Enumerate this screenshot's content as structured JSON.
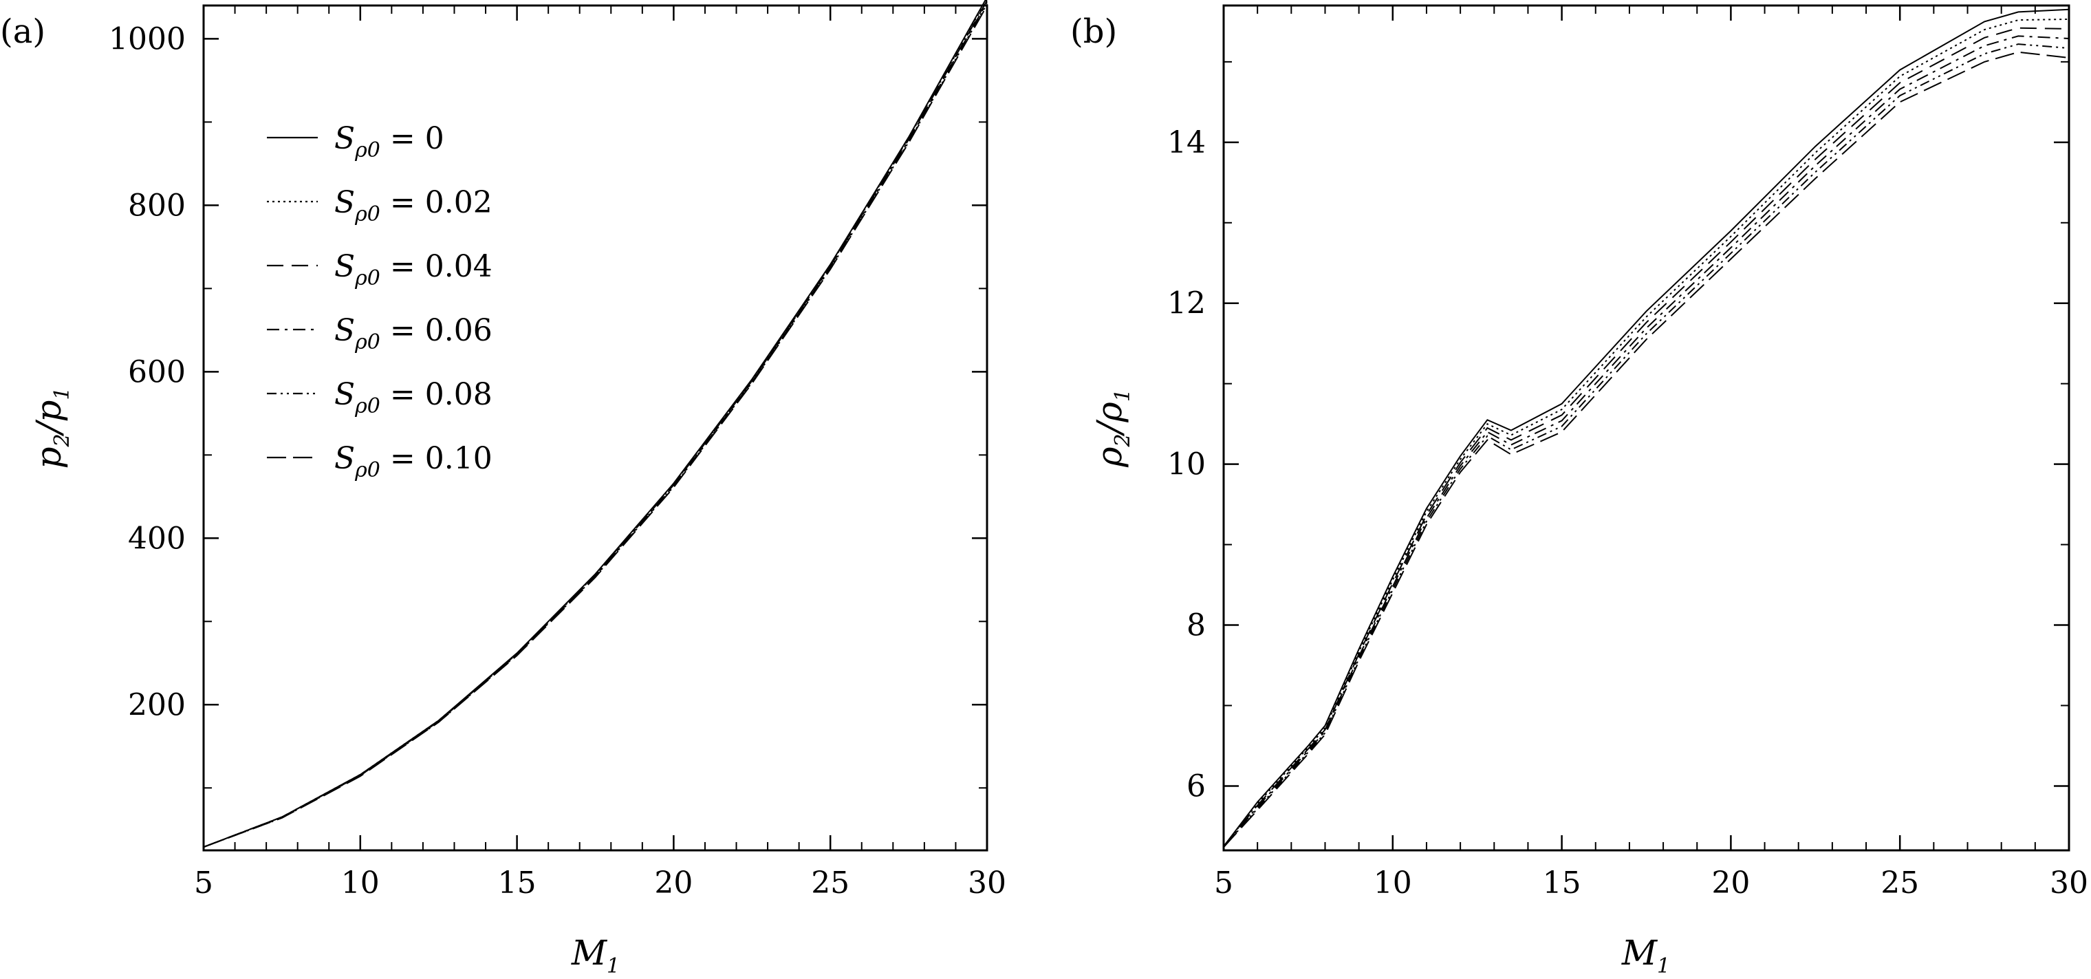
{
  "chart_data": [
    {
      "panel": "(a)",
      "type": "line",
      "xlabel": "M",
      "xlabel_sub": "1",
      "ylabel_parts": [
        "p",
        "2",
        "/p",
        "1"
      ],
      "xlim": [
        5,
        30
      ],
      "ylim": [
        25,
        1040
      ],
      "xticks": [
        5,
        10,
        15,
        20,
        25,
        30
      ],
      "yticks": [
        200,
        400,
        600,
        800,
        1000
      ],
      "legend_placement": "upper-left",
      "series": [
        {
          "name_main": "S",
          "name_sub": "ρ0",
          "name_value": "= 0",
          "dash": "none",
          "x": [
            5,
            7.5,
            10,
            12.5,
            15,
            17.5,
            20,
            22.5,
            25,
            27.5,
            30
          ],
          "y": [
            29,
            65,
            116,
            181,
            262,
            357,
            466,
            591,
            729,
            882,
            1050
          ]
        },
        {
          "name_main": "S",
          "name_sub": "ρ0",
          "name_value": "= 0.02",
          "dash": "3,5",
          "x": [
            5,
            7.5,
            10,
            12.5,
            15,
            17.5,
            20,
            22.5,
            25,
            27.5,
            30
          ],
          "y": [
            29,
            65,
            116,
            181,
            261,
            356,
            465,
            590,
            728,
            881,
            1048
          ]
        },
        {
          "name_main": "S",
          "name_sub": "ρ0",
          "name_value": "= 0.04",
          "dash": "24,12",
          "x": [
            5,
            7.5,
            10,
            12.5,
            15,
            17.5,
            20,
            22.5,
            25,
            27.5,
            30
          ],
          "y": [
            29,
            65,
            115,
            180,
            261,
            355,
            464,
            589,
            727,
            879,
            1046
          ]
        },
        {
          "name_main": "S",
          "name_sub": "ρ0",
          "name_value": "= 0.06",
          "dash": "18,8,4,8",
          "x": [
            5,
            7.5,
            10,
            12.5,
            15,
            17.5,
            20,
            22.5,
            25,
            27.5,
            30
          ],
          "y": [
            29,
            65,
            115,
            180,
            260,
            355,
            463,
            588,
            726,
            878,
            1044
          ]
        },
        {
          "name_main": "S",
          "name_sub": "ρ0",
          "name_value": "= 0.08",
          "dash": "14,6,3,6,3,6",
          "x": [
            5,
            7.5,
            10,
            12.5,
            15,
            17.5,
            20,
            22.5,
            25,
            27.5,
            30
          ],
          "y": [
            29,
            64,
            115,
            179,
            260,
            354,
            462,
            587,
            724,
            876,
            1042
          ]
        },
        {
          "name_main": "S",
          "name_sub": "ρ0",
          "name_value": "= 0.10",
          "dash": "28,10",
          "x": [
            5,
            7.5,
            10,
            12.5,
            15,
            17.5,
            20,
            22.5,
            25,
            27.5,
            30
          ],
          "y": [
            29,
            64,
            114,
            179,
            259,
            353,
            461,
            586,
            723,
            875,
            1040
          ]
        }
      ]
    },
    {
      "panel": "(b)",
      "type": "line",
      "xlabel": "M",
      "xlabel_sub": "1",
      "ylabel_parts": [
        "ρ",
        "2",
        "/ρ",
        "1"
      ],
      "xlim": [
        5,
        30
      ],
      "ylim": [
        5.2,
        15.7
      ],
      "xticks": [
        5,
        10,
        15,
        20,
        25,
        30
      ],
      "yticks": [
        6,
        8,
        10,
        12,
        14
      ],
      "series": [
        {
          "name_main": "S",
          "name_sub": "ρ0",
          "name_value": "= 0",
          "dash": "none",
          "x": [
            5,
            6,
            7.5,
            8,
            9,
            10,
            11,
            12,
            12.8,
            13.5,
            15,
            17.5,
            20,
            22.5,
            25,
            27.5,
            28.5,
            30
          ],
          "y": [
            5.25,
            5.8,
            6.5,
            6.75,
            7.7,
            8.6,
            9.45,
            10.1,
            10.55,
            10.42,
            10.75,
            11.9,
            12.9,
            13.95,
            14.9,
            15.5,
            15.62,
            15.65
          ]
        },
        {
          "name_main": "S",
          "name_sub": "ρ0",
          "name_value": "= 0.02",
          "dash": "3,5",
          "x": [
            5,
            6,
            7.5,
            8,
            9,
            10,
            11,
            12,
            12.8,
            13.5,
            15,
            17.5,
            20,
            22.5,
            25,
            27.5,
            28.5,
            30
          ],
          "y": [
            5.25,
            5.78,
            6.48,
            6.72,
            7.67,
            8.56,
            9.41,
            10.06,
            10.5,
            10.36,
            10.68,
            11.83,
            12.83,
            13.87,
            14.82,
            15.4,
            15.52,
            15.53
          ]
        },
        {
          "name_main": "S",
          "name_sub": "ρ0",
          "name_value": "= 0.04",
          "dash": "24,12",
          "x": [
            5,
            6,
            7.5,
            8,
            9,
            10,
            11,
            12,
            12.8,
            13.5,
            15,
            17.5,
            20,
            22.5,
            25,
            27.5,
            28.5,
            30
          ],
          "y": [
            5.25,
            5.76,
            6.46,
            6.7,
            7.64,
            8.52,
            9.37,
            10.02,
            10.45,
            10.3,
            10.61,
            11.76,
            12.76,
            13.79,
            14.74,
            15.3,
            15.42,
            15.41
          ]
        },
        {
          "name_main": "S",
          "name_sub": "ρ0",
          "name_value": "= 0.06",
          "dash": "18,8,4,8",
          "x": [
            5,
            6,
            7.5,
            8,
            9,
            10,
            11,
            12,
            12.8,
            13.5,
            15,
            17.5,
            20,
            22.5,
            25,
            27.5,
            28.5,
            30
          ],
          "y": [
            5.24,
            5.74,
            6.44,
            6.68,
            7.61,
            8.48,
            9.33,
            9.98,
            10.4,
            10.24,
            10.54,
            11.69,
            12.69,
            13.71,
            14.66,
            15.2,
            15.32,
            15.29
          ]
        },
        {
          "name_main": "S",
          "name_sub": "ρ0",
          "name_value": "= 0.08",
          "dash": "14,6,3,6,3,6",
          "x": [
            5,
            6,
            7.5,
            8,
            9,
            10,
            11,
            12,
            12.8,
            13.5,
            15,
            17.5,
            20,
            22.5,
            25,
            27.5,
            28.5,
            30
          ],
          "y": [
            5.24,
            5.72,
            6.42,
            6.66,
            7.58,
            8.44,
            9.29,
            9.94,
            10.35,
            10.18,
            10.47,
            11.62,
            12.62,
            13.63,
            14.58,
            15.1,
            15.22,
            15.17
          ]
        },
        {
          "name_main": "S",
          "name_sub": "ρ0",
          "name_value": "= 0.10",
          "dash": "28,10",
          "x": [
            5,
            6,
            7.5,
            8,
            9,
            10,
            11,
            12,
            12.8,
            13.5,
            15,
            17.5,
            20,
            22.5,
            25,
            27.5,
            28.5,
            30
          ],
          "y": [
            5.24,
            5.7,
            6.4,
            6.64,
            7.55,
            8.4,
            9.25,
            9.9,
            10.3,
            10.12,
            10.4,
            11.55,
            12.55,
            13.55,
            14.5,
            15.0,
            15.12,
            15.05
          ]
        }
      ]
    }
  ]
}
